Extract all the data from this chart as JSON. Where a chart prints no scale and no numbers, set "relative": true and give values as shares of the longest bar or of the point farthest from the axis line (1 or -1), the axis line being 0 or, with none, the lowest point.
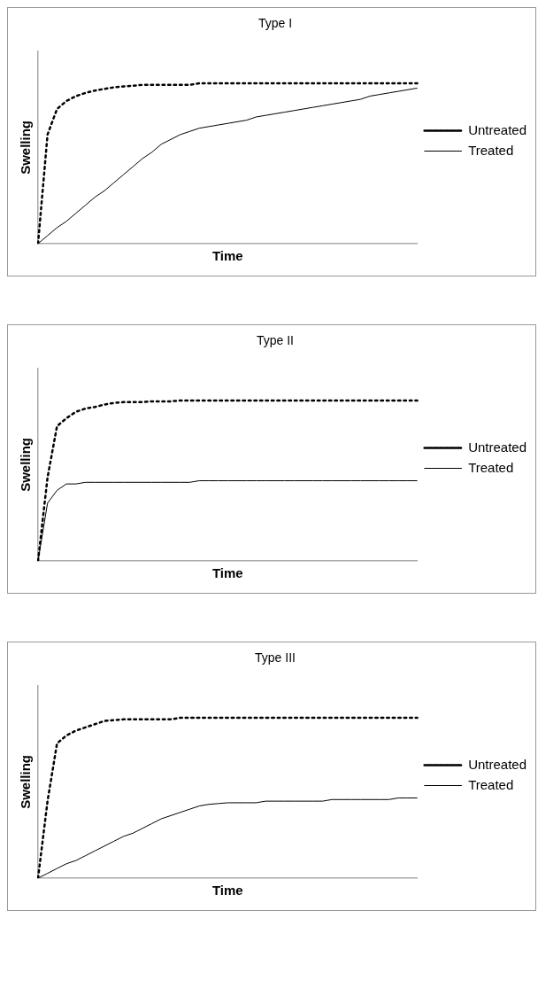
{
  "chart_data": [
    {
      "type": "line",
      "title": "Type I",
      "xlabel": "Time",
      "ylabel": "Swelling",
      "relative": true,
      "legend": "right",
      "marker": "none",
      "grid": false,
      "categories": [
        null,
        null,
        null,
        null,
        null,
        null,
        null,
        null,
        null,
        null,
        null,
        null,
        null,
        null,
        null,
        null,
        null,
        null,
        null,
        null,
        null,
        null,
        null,
        null,
        null,
        null,
        null,
        null,
        null,
        null,
        null,
        null,
        null,
        null,
        null,
        null,
        null,
        null,
        null,
        null,
        null
      ],
      "series": [
        {
          "name": "Untreated",
          "color": "#000000",
          "line_style": "dotted",
          "values": [
            0,
            0.68,
            0.84,
            0.89,
            0.92,
            0.94,
            0.955,
            0.965,
            0.975,
            0.98,
            0.985,
            0.99,
            0.99,
            0.99,
            0.99,
            0.99,
            0.99,
            1,
            1,
            1,
            1,
            1,
            1,
            1,
            1,
            1,
            1,
            1,
            1,
            1,
            1,
            1,
            1,
            1,
            1,
            1,
            1,
            1,
            1,
            1,
            1
          ]
        },
        {
          "name": "Treated",
          "color": "#000000",
          "line_style": "solid",
          "values": [
            0,
            0.05,
            0.1,
            0.14,
            0.19,
            0.24,
            0.29,
            0.33,
            0.38,
            0.43,
            0.48,
            0.53,
            0.57,
            0.62,
            0.65,
            0.68,
            0.7,
            0.72,
            0.73,
            0.74,
            0.75,
            0.76,
            0.77,
            0.79,
            0.8,
            0.81,
            0.82,
            0.83,
            0.84,
            0.85,
            0.86,
            0.87,
            0.88,
            0.89,
            0.9,
            0.92,
            0.93,
            0.94,
            0.95,
            0.96,
            0.97
          ]
        }
      ]
    },
    {
      "type": "line",
      "title": "Type II",
      "xlabel": "Time",
      "ylabel": "Swelling",
      "relative": true,
      "legend": "right",
      "marker": "none",
      "grid": false,
      "categories": [
        null,
        null,
        null,
        null,
        null,
        null,
        null,
        null,
        null,
        null,
        null,
        null,
        null,
        null,
        null,
        null,
        null,
        null,
        null,
        null,
        null,
        null,
        null,
        null,
        null,
        null,
        null,
        null,
        null,
        null,
        null,
        null,
        null,
        null,
        null,
        null,
        null,
        null,
        null,
        null,
        null
      ],
      "series": [
        {
          "name": "Untreated",
          "color": "#000000",
          "line_style": "dotted",
          "values": [
            0,
            0.52,
            0.84,
            0.89,
            0.93,
            0.95,
            0.96,
            0.975,
            0.985,
            0.99,
            0.99,
            0.99,
            0.995,
            0.995,
            0.995,
            1,
            1,
            1,
            1,
            1,
            1,
            1,
            1,
            1,
            1,
            1,
            1,
            1,
            1,
            1,
            1,
            1,
            1,
            1,
            1,
            1,
            1,
            1,
            1,
            1,
            1
          ]
        },
        {
          "name": "Treated",
          "color": "#000000",
          "line_style": "solid",
          "values": [
            0,
            0.36,
            0.44,
            0.48,
            0.48,
            0.49,
            0.49,
            0.49,
            0.49,
            0.49,
            0.49,
            0.49,
            0.49,
            0.49,
            0.49,
            0.49,
            0.49,
            0.5,
            0.5,
            0.5,
            0.5,
            0.5,
            0.5,
            0.5,
            0.5,
            0.5,
            0.5,
            0.5,
            0.5,
            0.5,
            0.5,
            0.5,
            0.5,
            0.5,
            0.5,
            0.5,
            0.5,
            0.5,
            0.5,
            0.5,
            0.5
          ]
        }
      ]
    },
    {
      "type": "line",
      "title": "Type III",
      "xlabel": "Time",
      "ylabel": "Swelling",
      "relative": true,
      "legend": "right",
      "marker": "none",
      "grid": false,
      "categories": [
        null,
        null,
        null,
        null,
        null,
        null,
        null,
        null,
        null,
        null,
        null,
        null,
        null,
        null,
        null,
        null,
        null,
        null,
        null,
        null,
        null,
        null,
        null,
        null,
        null,
        null,
        null,
        null,
        null,
        null,
        null,
        null,
        null,
        null,
        null,
        null,
        null,
        null,
        null,
        null,
        null
      ],
      "series": [
        {
          "name": "Untreated",
          "color": "#000000",
          "line_style": "dotted",
          "values": [
            0,
            0.48,
            0.84,
            0.89,
            0.92,
            0.94,
            0.96,
            0.98,
            0.985,
            0.99,
            0.99,
            0.99,
            0.99,
            0.99,
            0.99,
            1,
            1,
            1,
            1,
            1,
            1,
            1,
            1,
            1,
            1,
            1,
            1,
            1,
            1,
            1,
            1,
            1,
            1,
            1,
            1,
            1,
            1,
            1,
            1,
            1,
            1
          ]
        },
        {
          "name": "Treated",
          "color": "#000000",
          "line_style": "solid",
          "values": [
            0,
            0.03,
            0.06,
            0.09,
            0.11,
            0.14,
            0.17,
            0.2,
            0.23,
            0.26,
            0.28,
            0.31,
            0.34,
            0.37,
            0.39,
            0.41,
            0.43,
            0.45,
            0.46,
            0.465,
            0.47,
            0.47,
            0.47,
            0.47,
            0.48,
            0.48,
            0.48,
            0.48,
            0.48,
            0.48,
            0.48,
            0.49,
            0.49,
            0.49,
            0.49,
            0.49,
            0.49,
            0.49,
            0.5,
            0.5,
            0.5
          ]
        }
      ]
    }
  ]
}
